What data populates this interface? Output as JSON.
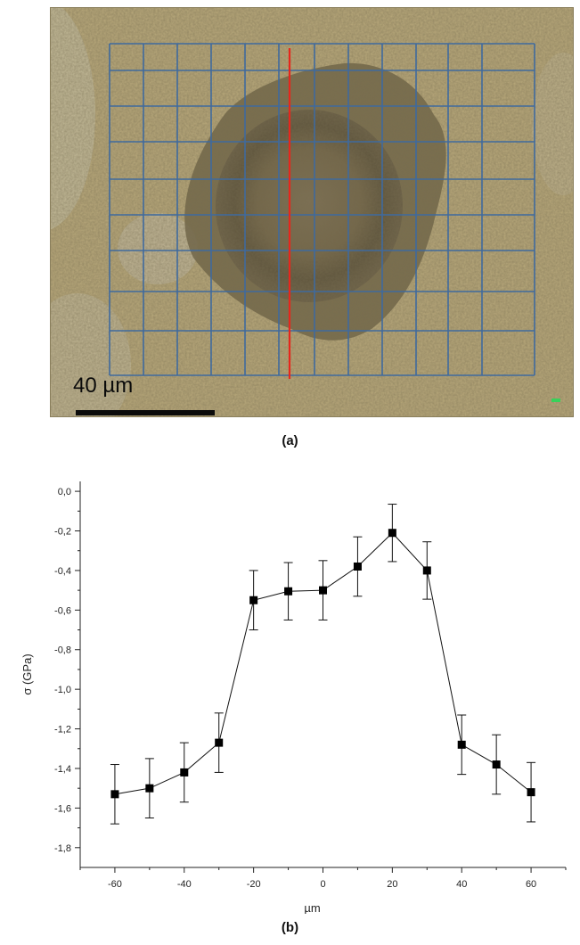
{
  "panel_a": {
    "caption": "(a)",
    "scale_bar_label": "40 µm",
    "colors": {
      "background": "#b9a97b",
      "dark_region": "#6d6148",
      "grid": "#3f6a9e",
      "center_line": "#e8261c",
      "scale_bar": "#0b0b0b"
    }
  },
  "panel_b": {
    "caption": "(b)"
  },
  "chart_data": {
    "type": "scatter",
    "xlabel": "µm",
    "ylabel": "σ (GPa)",
    "xlim": [
      -70,
      70
    ],
    "ylim": [
      -1.9,
      0.05
    ],
    "x_ticks": [
      -60,
      -40,
      -20,
      0,
      20,
      40,
      60
    ],
    "y_ticks": [
      0.0,
      -0.2,
      -0.4,
      -0.6,
      -0.8,
      -1.0,
      -1.2,
      -1.4,
      -1.6,
      -1.8
    ],
    "y_tick_labels": [
      "0,0",
      "-0,2",
      "-0,4",
      "-0,6",
      "-0,8",
      "-1,0",
      "-1,2",
      "-1,4",
      "-1,6",
      "-1,8"
    ],
    "grid": false,
    "connected": true,
    "marker": "square",
    "series": [
      {
        "x": [
          -60,
          -50,
          -40,
          -30,
          -20,
          -10,
          0,
          10,
          20,
          30,
          40,
          50,
          60
        ],
        "y": [
          -1.53,
          -1.5,
          -1.42,
          -1.27,
          -0.55,
          -0.505,
          -0.5,
          -0.38,
          -0.21,
          -0.4,
          -1.28,
          -1.38,
          -1.52
        ],
        "err": [
          0.15,
          0.15,
          0.15,
          0.15,
          0.15,
          0.145,
          0.15,
          0.15,
          0.145,
          0.145,
          0.15,
          0.15,
          0.15
        ]
      }
    ]
  }
}
